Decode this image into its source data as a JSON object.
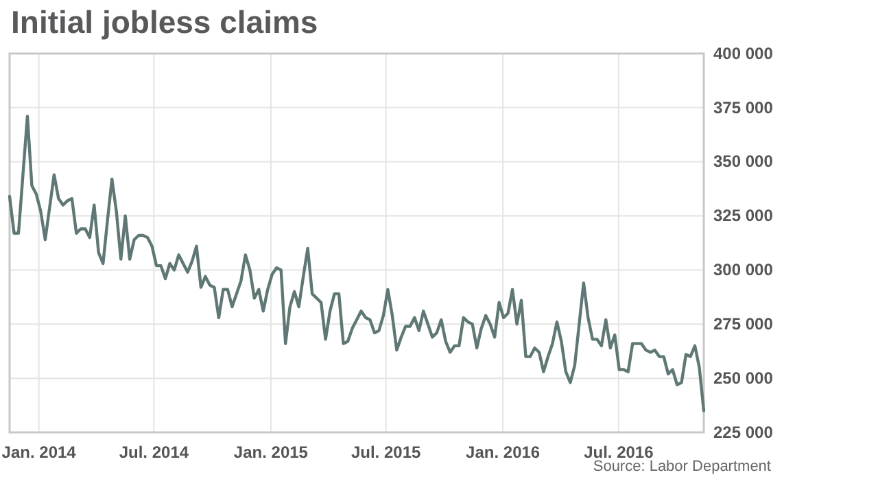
{
  "chart_data": {
    "type": "line",
    "title": "Initial jobless claims",
    "annotations": [
      "Source: Labor Department"
    ],
    "x": [
      "2013-11-16",
      "2013-11-23",
      "2013-11-30",
      "2013-12-07",
      "2013-12-14",
      "2013-12-21",
      "2013-12-28",
      "2014-01-04",
      "2014-01-11",
      "2014-01-18",
      "2014-01-25",
      "2014-02-01",
      "2014-02-08",
      "2014-02-15",
      "2014-02-22",
      "2014-03-01",
      "2014-03-08",
      "2014-03-15",
      "2014-03-22",
      "2014-03-29",
      "2014-04-05",
      "2014-04-12",
      "2014-04-19",
      "2014-04-26",
      "2014-05-03",
      "2014-05-10",
      "2014-05-17",
      "2014-05-24",
      "2014-05-31",
      "2014-06-07",
      "2014-06-14",
      "2014-06-21",
      "2014-06-28",
      "2014-07-05",
      "2014-07-12",
      "2014-07-19",
      "2014-07-26",
      "2014-08-02",
      "2014-08-09",
      "2014-08-16",
      "2014-08-23",
      "2014-08-30",
      "2014-09-06",
      "2014-09-13",
      "2014-09-20",
      "2014-09-27",
      "2014-10-04",
      "2014-10-11",
      "2014-10-18",
      "2014-10-25",
      "2014-11-01",
      "2014-11-08",
      "2014-11-15",
      "2014-11-22",
      "2014-11-29",
      "2014-12-06",
      "2014-12-13",
      "2014-12-20",
      "2014-12-27",
      "2015-01-03",
      "2015-01-10",
      "2015-01-17",
      "2015-01-24",
      "2015-01-31",
      "2015-02-07",
      "2015-02-14",
      "2015-02-21",
      "2015-02-28",
      "2015-03-07",
      "2015-03-14",
      "2015-03-21",
      "2015-03-28",
      "2015-04-04",
      "2015-04-11",
      "2015-04-18",
      "2015-04-25",
      "2015-05-02",
      "2015-05-09",
      "2015-05-16",
      "2015-05-23",
      "2015-05-30",
      "2015-06-06",
      "2015-06-13",
      "2015-06-20",
      "2015-06-27",
      "2015-07-04",
      "2015-07-11",
      "2015-07-18",
      "2015-07-25",
      "2015-08-01",
      "2015-08-08",
      "2015-08-15",
      "2015-08-22",
      "2015-08-29",
      "2015-09-05",
      "2015-09-12",
      "2015-09-19",
      "2015-09-26",
      "2015-10-03",
      "2015-10-10",
      "2015-10-17",
      "2015-10-24",
      "2015-10-31",
      "2015-11-07",
      "2015-11-14",
      "2015-11-21",
      "2015-11-28",
      "2015-12-05",
      "2015-12-12",
      "2015-12-19",
      "2015-12-26",
      "2016-01-02",
      "2016-01-09",
      "2016-01-16",
      "2016-01-23",
      "2016-01-30",
      "2016-02-06",
      "2016-02-13",
      "2016-02-20",
      "2016-02-27",
      "2016-03-05",
      "2016-03-12",
      "2016-03-19",
      "2016-03-26",
      "2016-04-02",
      "2016-04-09",
      "2016-04-16",
      "2016-04-23",
      "2016-04-30",
      "2016-05-07",
      "2016-05-14",
      "2016-05-21",
      "2016-05-28",
      "2016-06-04",
      "2016-06-11",
      "2016-06-18",
      "2016-06-25",
      "2016-07-02",
      "2016-07-09",
      "2016-07-16",
      "2016-07-23",
      "2016-07-30",
      "2016-08-06",
      "2016-08-13",
      "2016-08-20",
      "2016-08-27",
      "2016-09-03",
      "2016-09-10",
      "2016-09-17",
      "2016-09-24",
      "2016-10-01",
      "2016-10-08",
      "2016-10-15",
      "2016-10-22",
      "2016-10-29",
      "2016-11-05",
      "2016-11-12"
    ],
    "series": [
      {
        "color": "#5f7875",
        "values": [
          334000,
          317000,
          317000,
          344000,
          371000,
          339000,
          335000,
          327000,
          314000,
          329000,
          344000,
          333000,
          330000,
          332000,
          333000,
          317000,
          319000,
          319000,
          315000,
          330000,
          308000,
          303000,
          323000,
          342000,
          327000,
          305000,
          325000,
          305000,
          314000,
          316000,
          316000,
          315000,
          311000,
          302000,
          302000,
          296000,
          303000,
          300000,
          307000,
          303000,
          299000,
          304000,
          311000,
          292000,
          297000,
          293000,
          292000,
          278000,
          291000,
          291000,
          283000,
          289000,
          295000,
          307000,
          300000,
          287000,
          291000,
          281000,
          291000,
          298000,
          301000,
          300000,
          266000,
          283000,
          290000,
          283000,
          297000,
          310000,
          289000,
          287000,
          285000,
          268000,
          281000,
          289000,
          289000,
          266000,
          267000,
          273000,
          277000,
          281000,
          278000,
          277000,
          271000,
          272000,
          279000,
          291000,
          279000,
          263000,
          269000,
          274000,
          274000,
          278000,
          272000,
          281000,
          275000,
          269000,
          271000,
          277000,
          267000,
          262000,
          265000,
          265000,
          278000,
          276000,
          275000,
          264000,
          273000,
          279000,
          275000,
          269000,
          285000,
          278000,
          280000,
          291000,
          275000,
          286000,
          260000,
          260000,
          264000,
          262000,
          253000,
          260000,
          266000,
          276000,
          267000,
          253000,
          248000,
          256000,
          275000,
          294000,
          278000,
          268000,
          268000,
          265000,
          277000,
          264000,
          270000,
          254000,
          254000,
          253000,
          266000,
          266000,
          266000,
          263000,
          262000,
          263000,
          260000,
          260000,
          252000,
          254000,
          247000,
          248000,
          261000,
          260000,
          265000,
          255000,
          235000
        ]
      }
    ],
    "xlim": [
      "2013-11-16",
      "2016-11-12"
    ],
    "xticks": [
      {
        "value": "2014-01-01",
        "label": "Jan. 2014"
      },
      {
        "value": "2014-07-01",
        "label": "Jul. 2014"
      },
      {
        "value": "2015-01-01",
        "label": "Jan. 2015"
      },
      {
        "value": "2015-07-01",
        "label": "Jul. 2015"
      },
      {
        "value": "2016-01-01",
        "label": "Jan. 2016"
      },
      {
        "value": "2016-07-01",
        "label": "Jul. 2016"
      }
    ],
    "ylim": [
      225000,
      400000
    ],
    "yticks": [
      {
        "value": 225000,
        "label": "225 000"
      },
      {
        "value": 250000,
        "label": "250 000"
      },
      {
        "value": 275000,
        "label": "275 000"
      },
      {
        "value": 300000,
        "label": "300 000"
      },
      {
        "value": 325000,
        "label": "325 000"
      },
      {
        "value": 350000,
        "label": "350 000"
      },
      {
        "value": 375000,
        "label": "375 000"
      },
      {
        "value": 400000,
        "label": "400 000"
      }
    ],
    "grid": true,
    "marker": "none",
    "line_style": "solid"
  }
}
